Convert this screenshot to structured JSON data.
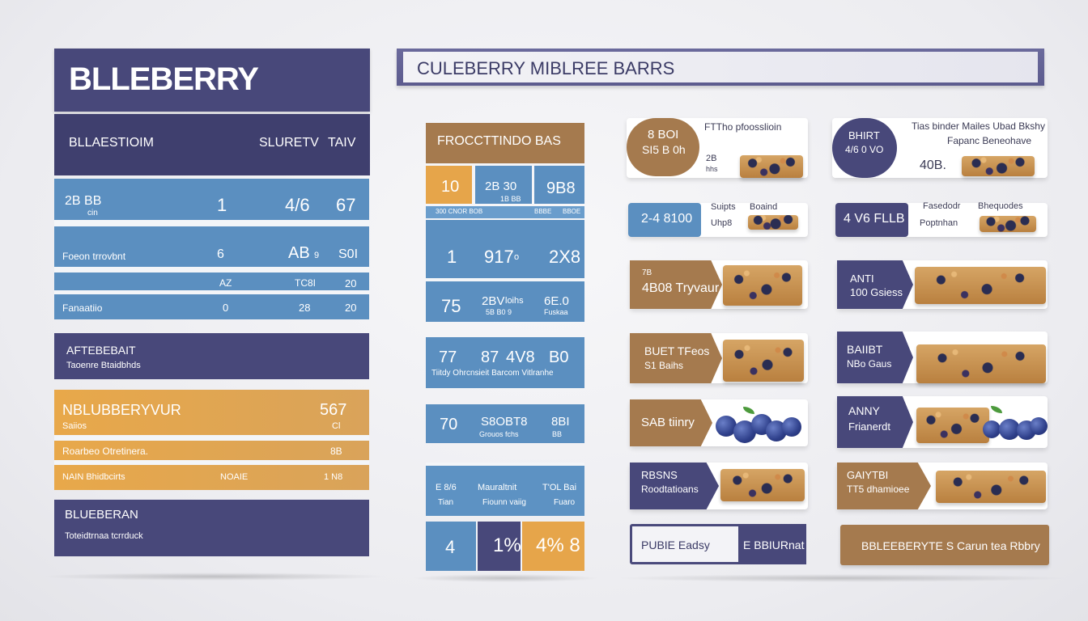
{
  "header": {
    "left_title": "BLLEBERRY",
    "right_title": "CULEBERRY MIBLREE BARRS"
  },
  "left_panel": {
    "sub_header": {
      "col1": "BLLAESTIOIM",
      "col2": "SLURETV",
      "col3": "TAIV"
    },
    "blue_rows": [
      {
        "label_top": "2B BB",
        "label_bottom": "cin",
        "c1": "1",
        "c2": "4/6",
        "c3": "67"
      },
      {
        "label": "Foeon trrovbnt",
        "c1": "6",
        "c2": "AB",
        "c2b": "9",
        "c3": "S0I"
      },
      {
        "label": "",
        "c1": "AZ",
        "c2": "TC8I",
        "c3": "20"
      },
      {
        "label": "Fanaatiio",
        "c1": "0",
        "c2": "28",
        "c3": "20"
      }
    ],
    "navy_box1": {
      "title": "AFTEBEBAIT",
      "subtitle": "Taoenre Btaidbhds"
    },
    "gold_box": {
      "title": "NBLUBBERYVUR",
      "num": "567",
      "small": "Saiios",
      "small_right": "Cl",
      "row1_label": "Roarbeo Otretinera.",
      "row1_val": "8B",
      "row2_label": "NAIN Bhidbcirts",
      "row2_mid": "NOAIE",
      "row2_val": "1 N8"
    },
    "navy_box2": {
      "title": "BLUEBERAN",
      "subtitle": "Toteidtrnaa tcrrduck"
    }
  },
  "middle_panel": {
    "header": "FROCCTTINDO BAS",
    "top_cells": {
      "gold": "10",
      "c2": "2B 30",
      "c2b": "1B BB",
      "c3": "9B8"
    },
    "strip_labels": [
      "300 CNOR BOB",
      "BBBE",
      "BBOE"
    ],
    "row2": {
      "c1": "1",
      "c2": "917",
      "c2b": "o",
      "c3": "2X8"
    },
    "row3": {
      "c1": "75",
      "c2": "2BV",
      "c2b": "loihs",
      "c2c": "5B B0 9",
      "c3": "6E.0",
      "c3b": "Fuskaa"
    },
    "box2": {
      "nums": [
        "77",
        "87",
        "4V8",
        "B0"
      ],
      "caption": "Tiitdy Ohrcnsieit Barcom Vitlranhe"
    },
    "box3": {
      "n1": "70",
      "n2": "S8OB",
      "n2b": "T8",
      "n2c": "Grouos fchs",
      "n3": "8BI",
      "n3b": "BB"
    },
    "box4": {
      "headers": [
        "E 8/6",
        "Mauraltnit",
        "T'OL Bai"
      ],
      "subs": [
        "Tian",
        "Fiounn vaiig",
        "Fuaro"
      ]
    },
    "box5": {
      "a": "4",
      "b": "1%",
      "c": "4% 8"
    }
  },
  "right_grid": {
    "row1_left": {
      "pill_top": "8 BOI",
      "pill_bottom": "SI5 B 0h",
      "caption": "FTTho pfoosslioin",
      "small1": "2B",
      "small2": "hhs"
    },
    "row1_right": {
      "pill_top": "BHIRT",
      "pill_bottom": "4/6 0 VO",
      "caption1": "Tias binder Mailes Ubad Bkshy",
      "caption2": "Fapanc Beneohave",
      "num": "40B."
    },
    "row2_left": {
      "box": "2-4 8100",
      "c1": "Suipts",
      "c1b": "Uhp8",
      "c2": "Boaind"
    },
    "row2_right": {
      "box": "4 V6 FLLB",
      "c1": "Fasedodr",
      "c1b": "Poptnhan",
      "c2": "Bhequodes"
    },
    "row3_left": {
      "line1": "7B",
      "line2": "4B08 Tryvaur"
    },
    "row3_right": {
      "line1": "ANTI",
      "line2": "100 Gsiess"
    },
    "row4_left": {
      "line1": "BUET TFeos",
      "line2": "S1 Baihs"
    },
    "row4_right": {
      "line1": "BAIIBT",
      "line2": "NBo Gaus"
    },
    "row5_left": {
      "line1": "SAB tiinry"
    },
    "row5_right": {
      "line1": "ANNY",
      "line2": "Frianerdt"
    },
    "row6_left": {
      "line1": "RBSNS",
      "line2": "Roodtatioans"
    },
    "row6_right": {
      "line1": "GAIYTBI",
      "line2": "TT5 dhamioee"
    },
    "footer_left": {
      "left": "PUBIE Eadsy",
      "right": "E BBIURnat"
    },
    "footer_right": "BBLEEBERYTE S Carun tea Rbbry"
  }
}
